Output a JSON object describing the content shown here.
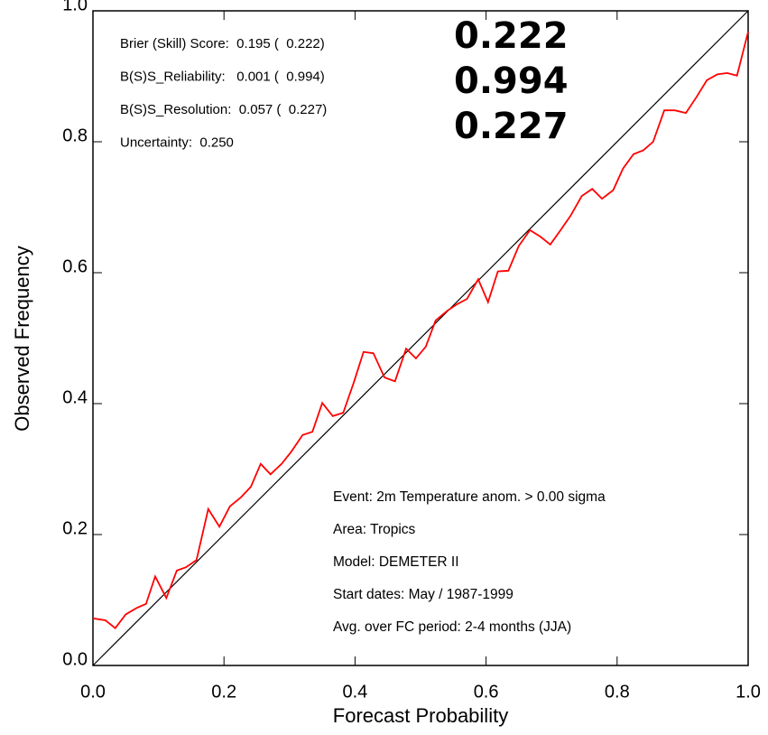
{
  "chart_data": {
    "type": "line",
    "xlabel": "Forecast Probability",
    "ylabel": "Observed Frequency",
    "xlim": [
      0,
      1
    ],
    "ylim": [
      0,
      1
    ],
    "xticks": [
      {
        "value": 0,
        "label": "0.0"
      },
      {
        "value": 0.2,
        "label": "0.2"
      },
      {
        "value": 0.4,
        "label": "0.4"
      },
      {
        "value": 0.6,
        "label": "0.6"
      },
      {
        "value": 0.8,
        "label": "0.8"
      },
      {
        "value": 1,
        "label": "1.0"
      }
    ],
    "yticks": [
      {
        "value": 0,
        "label": "0.0"
      },
      {
        "value": 0.2,
        "label": "0.2"
      },
      {
        "value": 0.4,
        "label": "0.4"
      },
      {
        "value": 0.6,
        "label": "0.6"
      },
      {
        "value": 0.8,
        "label": "0.8"
      },
      {
        "value": 1,
        "label": "1.0"
      }
    ],
    "x": [
      0.0,
      0.019,
      0.034,
      0.05,
      0.067,
      0.081,
      0.095,
      0.112,
      0.128,
      0.142,
      0.158,
      0.176,
      0.193,
      0.209,
      0.226,
      0.241,
      0.256,
      0.271,
      0.288,
      0.303,
      0.32,
      0.335,
      0.35,
      0.366,
      0.382,
      0.398,
      0.413,
      0.428,
      0.445,
      0.461,
      0.478,
      0.493,
      0.508,
      0.523,
      0.541,
      0.556,
      0.571,
      0.588,
      0.603,
      0.618,
      0.634,
      0.65,
      0.667,
      0.683,
      0.698,
      0.713,
      0.729,
      0.746,
      0.762,
      0.777,
      0.794,
      0.809,
      0.825,
      0.84,
      0.855,
      0.872,
      0.888,
      0.905,
      0.921,
      0.937,
      0.953,
      0.968,
      0.983,
      1.0
    ],
    "series": [
      {
        "color": "#ff0000",
        "values": [
          0.072,
          0.069,
          0.057,
          0.078,
          0.088,
          0.094,
          0.136,
          0.103,
          0.145,
          0.15,
          0.161,
          0.239,
          0.212,
          0.243,
          0.257,
          0.273,
          0.308,
          0.292,
          0.308,
          0.327,
          0.352,
          0.357,
          0.401,
          0.381,
          0.386,
          0.432,
          0.479,
          0.477,
          0.44,
          0.434,
          0.484,
          0.469,
          0.487,
          0.527,
          0.542,
          0.552,
          0.56,
          0.59,
          0.555,
          0.602,
          0.603,
          0.641,
          0.665,
          0.655,
          0.643,
          0.664,
          0.687,
          0.717,
          0.728,
          0.713,
          0.726,
          0.759,
          0.781,
          0.787,
          0.8,
          0.848,
          0.848,
          0.844,
          0.868,
          0.894,
          0.903,
          0.905,
          0.901,
          0.968
        ]
      }
    ],
    "stats": [
      "Brier (Skill) Score:  0.195 (  0.222)",
      "B(S)S_Reliability:   0.001 (  0.994)",
      "B(S)S_Resolution:  0.057 (  0.227)",
      "Uncertainty:  0.250"
    ],
    "highlights": [
      "0.222",
      "0.994",
      "0.227"
    ],
    "notes": [
      "Event: 2m Temperature anom. >  0.00 sigma",
      "Area: Tropics",
      "Model: DEMETER II",
      "Start dates: May / 1987-1999",
      "Avg. over FC period: 2-4 months (JJA)"
    ]
  }
}
